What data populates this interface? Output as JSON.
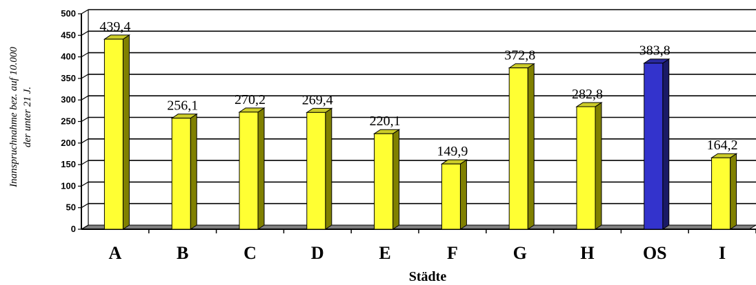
{
  "chart_data": {
    "type": "bar",
    "categories": [
      "A",
      "B",
      "C",
      "D",
      "E",
      "F",
      "G",
      "H",
      "OS",
      "I"
    ],
    "values": [
      439.4,
      256.1,
      270.2,
      269.4,
      220.1,
      149.9,
      372.8,
      282.8,
      383.8,
      164.2
    ],
    "data_labels": [
      "439,4",
      "256,1",
      "270,2",
      "269,4",
      "220,1",
      "149,9",
      "372,8",
      "282,8",
      "383,8",
      "164,2"
    ],
    "title": "",
    "xlabel": "Städte",
    "ylabel_line1": "Inanspruchnahme bez. auf 10.000",
    "ylabel_line2": "der unter 21 J.",
    "ylim": [
      0,
      500
    ],
    "yticks": [
      0,
      50,
      100,
      150,
      200,
      250,
      300,
      350,
      400,
      450,
      500
    ],
    "grid": true,
    "bar_colors": [
      "#ffff33",
      "#ffff33",
      "#ffff33",
      "#ffff33",
      "#ffff33",
      "#ffff33",
      "#ffff33",
      "#ffff33",
      "#3333cc",
      "#ffff33"
    ],
    "bar_side_colors": [
      "#808000",
      "#808000",
      "#808000",
      "#808000",
      "#808000",
      "#808000",
      "#808000",
      "#808000",
      "#1a1a66",
      "#808000"
    ],
    "bar_top_colors": [
      "#cccc29",
      "#cccc29",
      "#cccc29",
      "#cccc29",
      "#cccc29",
      "#cccc29",
      "#cccc29",
      "#cccc29",
      "#29299e",
      "#cccc29"
    ],
    "floor_color": "#808080"
  }
}
